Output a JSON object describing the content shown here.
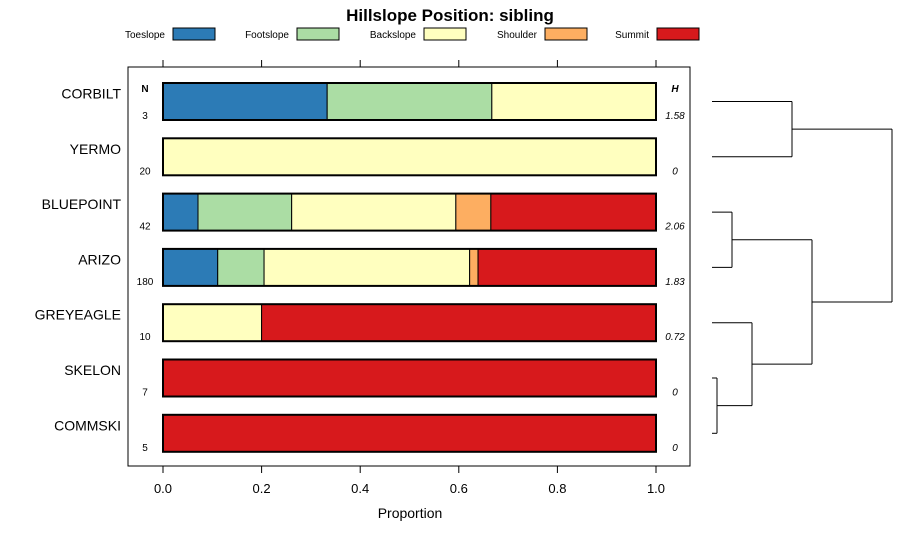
{
  "chart_data": {
    "type": "bar",
    "orientation": "horizontal",
    "stacked": true,
    "title": "Hillslope Position: sibling",
    "xlabel": "Proportion",
    "ylabel": "",
    "xlim": [
      0,
      1
    ],
    "x_ticks": [
      "0.0",
      "0.2",
      "0.4",
      "0.6",
      "0.8",
      "1.0"
    ],
    "legend_position": "top",
    "n_header": "N",
    "h_header": "H",
    "categories": [
      "CORBILT",
      "YERMO",
      "BLUEPOINT",
      "ARIZO",
      "GREYEAGLE",
      "SKELON",
      "COMMSKI"
    ],
    "n_values": [
      "3",
      "20",
      "42",
      "180",
      "10",
      "7",
      "5"
    ],
    "h_values": [
      "1.58",
      "0",
      "2.06",
      "1.83",
      "0.72",
      "0",
      "0"
    ],
    "series": [
      {
        "name": "Toeslope",
        "color": "#2C7BB6",
        "values": [
          0.333,
          0,
          0.071,
          0.111,
          0,
          0,
          0
        ]
      },
      {
        "name": "Footslope",
        "color": "#ABDDA4",
        "values": [
          0.334,
          0,
          0.19,
          0.094,
          0,
          0,
          0
        ]
      },
      {
        "name": "Backslope",
        "color": "#FFFFBF",
        "values": [
          0.333,
          1,
          0.333,
          0.417,
          0.2,
          0,
          0
        ]
      },
      {
        "name": "Shoulder",
        "color": "#FDAE61",
        "values": [
          0,
          0,
          0.071,
          0.017,
          0,
          0,
          0
        ]
      },
      {
        "name": "Summit",
        "color": "#D7191C",
        "values": [
          0,
          0,
          0.335,
          0.361,
          0.8,
          1,
          1
        ]
      }
    ],
    "dendrogram": {
      "merges": [
        {
          "left": "CORBILT",
          "right": "YERMO",
          "height": 0.2
        },
        {
          "left": "BLUEPOINT",
          "right": "ARIZO",
          "height": 0.05
        },
        {
          "left": "SKELON",
          "right": "COMMSKI",
          "height": 0.0
        },
        {
          "left": "GREYEAGLE",
          "right": "SKELON+COMMSKI",
          "height": 0.1
        },
        {
          "left": "BLUEPOINT+ARIZO",
          "right": "GREYEAGLE+SKELON+COMMSKI",
          "height": 0.25
        },
        {
          "left": "CORBILT+YERMO",
          "right": "rest",
          "height": 0.45
        }
      ]
    }
  }
}
